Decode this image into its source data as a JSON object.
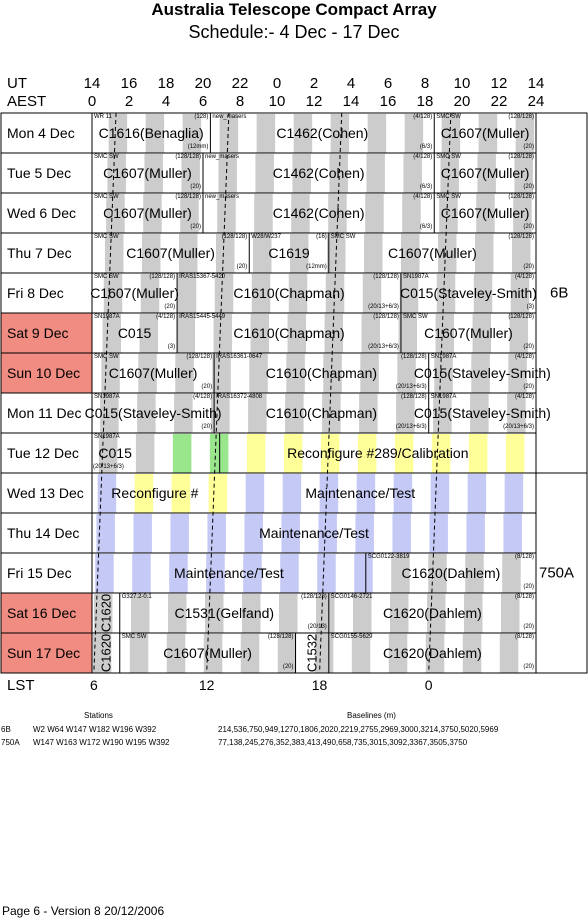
{
  "title": "Australia Telescope Compact Array",
  "subtitle": "Schedule:- 4  Dec - 17 Dec",
  "axis": {
    "ut_label": "UT",
    "aest_label": "AEST",
    "lst_label": "LST",
    "ut_ticks": [
      "14",
      "16",
      "18",
      "20",
      "22",
      "0",
      "2",
      "4",
      "6",
      "8",
      "10",
      "12",
      "14"
    ],
    "aest_ticks": [
      "0",
      "2",
      "4",
      "6",
      "8",
      "10",
      "12",
      "14",
      "16",
      "18",
      "20",
      "22",
      "24"
    ],
    "lst_ticks": [
      {
        "label": "6",
        "hour": 0.1
      },
      {
        "label": "12",
        "hour": 6.2
      },
      {
        "label": "18",
        "hour": 12.3
      },
      {
        "label": "0",
        "hour": 18.2
      }
    ]
  },
  "days": [
    {
      "label": "Mon   4  Dec",
      "weekend": false,
      "blocks": [
        {
          "start": 0,
          "end": 6.4,
          "name": "C1616(Benaglia)",
          "tl": "WR 11",
          "tr": "(128)",
          "br": "(12mm)"
        },
        {
          "start": 6.4,
          "end": 18.5,
          "name": "C1462(Cohen)",
          "tl": "new_masers",
          "tr": "(4/128)",
          "br": "(6/3)"
        },
        {
          "start": 18.5,
          "end": 24,
          "name": "C1607(Muller)",
          "tl": "SMC SW",
          "tr": "(128/128)",
          "br": "(20)"
        }
      ]
    },
    {
      "label": "Tue   5  Dec",
      "weekend": false,
      "blocks": [
        {
          "start": 0,
          "end": 6,
          "name": "C1607(Muller)",
          "tl": "SMC SW",
          "tr": "(128/128)",
          "br": "(20)"
        },
        {
          "start": 6,
          "end": 18.5,
          "name": "C1462(Cohen)",
          "tl": "new_masers",
          "tr": "(4/128)",
          "br": "(6/3)"
        },
        {
          "start": 18.5,
          "end": 24,
          "name": "C1607(Muller)",
          "tl": "SMC SW",
          "tr": "(128/128)",
          "br": "(20)"
        }
      ]
    },
    {
      "label": "Wed   6  Dec",
      "weekend": false,
      "blocks": [
        {
          "start": 0,
          "end": 6,
          "name": "C1607(Muller)",
          "tl": "SMC SW",
          "tr": "(128/128)",
          "br": "(20)"
        },
        {
          "start": 6,
          "end": 18.5,
          "name": "C1462(Cohen)",
          "tl": "new_masers",
          "tr": "(4/128)",
          "br": "(6/3)"
        },
        {
          "start": 18.5,
          "end": 24,
          "name": "C1607(Muller)",
          "tl": "SMC SW",
          "tr": "(128/128)",
          "br": "(20)"
        }
      ]
    },
    {
      "label": "Thu   7  Dec",
      "weekend": false,
      "blocks": [
        {
          "start": 0,
          "end": 8.5,
          "name": "C1607(Muller)",
          "tl": "SMC SW",
          "tr": "(128/128)",
          "br": "(20)"
        },
        {
          "start": 8.5,
          "end": 12.8,
          "name": "C1619",
          "tl": "W28/W237",
          "tr": "(16)",
          "br": "(12mm)"
        },
        {
          "start": 12.8,
          "end": 24,
          "name": "C1607(Muller)",
          "tl": "SMC SW",
          "tr": "(128/128)",
          "br": "(20)"
        }
      ]
    },
    {
      "label": "Fri    8  Dec",
      "weekend": false,
      "blocks": [
        {
          "start": 0,
          "end": 4.6,
          "name": "C1607(Muller)",
          "tl": "SMC SW",
          "tr": "(128/128)",
          "br": "(20)"
        },
        {
          "start": 4.6,
          "end": 16.7,
          "name": "C1610(Chapman)",
          "tl": "IRAS15367-5420",
          "tr": "(128/128)",
          "br": "(20/13+6/3)"
        },
        {
          "start": 16.7,
          "end": 24,
          "name": "C015(Staveley-Smith)",
          "tl": "SN1987A",
          "tr": "(4/128)",
          "br": "(3)"
        }
      ]
    },
    {
      "label": "Sat   9  Dec",
      "weekend": true,
      "blocks": [
        {
          "start": 0,
          "end": 4.6,
          "name": "C015",
          "tl": "SN1987A",
          "tr": "(4/128)",
          "br": "(3)"
        },
        {
          "start": 4.6,
          "end": 16.7,
          "name": "C1610(Chapman)",
          "tl": "IRAS15445-5449",
          "tr": "(128/128)",
          "br": "(20/13+6/3)"
        },
        {
          "start": 16.7,
          "end": 24,
          "name": "C1607(Muller)",
          "tl": "SMC SW",
          "tr": "(128/128)",
          "br": "(20)"
        }
      ]
    },
    {
      "label": "Sun  10 Dec",
      "weekend": true,
      "blocks": [
        {
          "start": 0,
          "end": 6.6,
          "name": "C1607(Muller)",
          "tl": "SMC SW",
          "tr": "(128/128)",
          "br": "(20)"
        },
        {
          "start": 6.6,
          "end": 18.2,
          "name": "C1610(Chapman)",
          "tl": "IRAS16361-0647",
          "tr": "(128/128)",
          "br": "(20/13+6/3)"
        },
        {
          "start": 18.2,
          "end": 24,
          "name": "C015(Staveley-Smith)",
          "tl": "SN1987A",
          "tr": "(4/128)",
          "br": "(20)"
        }
      ]
    },
    {
      "label": "Mon  11 Dec",
      "weekend": false,
      "blocks": [
        {
          "start": 0,
          "end": 6.6,
          "name": "C015(Staveley-Smith)",
          "tl": "SN1987A",
          "tr": "(4/128)",
          "br": "(20)"
        },
        {
          "start": 6.6,
          "end": 18.2,
          "name": "C1610(Chapman)",
          "tl": "IRAS16372-4808",
          "tr": "(128/128)",
          "br": "(20/13+6/3)"
        },
        {
          "start": 18.2,
          "end": 24,
          "name": "C015(Staveley-Smith)",
          "tl": "SN1987A",
          "tr": "(4/128)",
          "br": "(20/13+6/3)"
        }
      ]
    },
    {
      "label": "Tue   12 Dec",
      "weekend": false,
      "blocks": [
        {
          "start": 0,
          "end": 2.5,
          "name": "C015",
          "tl": "SN1987A",
          "tr": "",
          "br": "",
          "bl": "(20/13+6/3)"
        },
        {
          "start": 6.9,
          "end": 24,
          "name": "Reconfigure #289/Calibration",
          "tl": "",
          "tr": "",
          "br": ""
        }
      ]
    },
    {
      "label": "Wed  13 Dec",
      "weekend": false,
      "blocks": [
        {
          "start": 0,
          "end": 24,
          "name": "Reconfigure #",
          "name2": "Maintenance/Test",
          "tl": "",
          "tr": "",
          "br": ""
        }
      ]
    },
    {
      "label": "Thu   14 Dec",
      "weekend": false,
      "blocks": [
        {
          "start": 0,
          "end": 24,
          "name": "Maintenance/Test",
          "tl": "",
          "tr": "",
          "br": ""
        }
      ]
    },
    {
      "label": "Fri    15 Dec",
      "weekend": false,
      "blocks": [
        {
          "start": 0,
          "end": 14.8,
          "name": "Maintenance/Test",
          "tl": "",
          "tr": "",
          "br": ""
        },
        {
          "start": 14.8,
          "end": 24,
          "name": "C1620(Dahlem)",
          "tl": "SCG0122-3819",
          "tr": "(8/128)",
          "br": "(20)"
        }
      ]
    },
    {
      "label": "Sat   16 Dec",
      "weekend": true,
      "blocks": [
        {
          "start": 0,
          "end": 1.5,
          "name": "C1620",
          "vertical": true,
          "tl": "",
          "tr": "",
          "br": ""
        },
        {
          "start": 1.5,
          "end": 12.8,
          "name": "C1531(Gelfand)",
          "tl": "G327.2-0.1",
          "tr": "(128/128)",
          "br": "(20/13)"
        },
        {
          "start": 12.8,
          "end": 24,
          "name": "C1620(Dahlem)",
          "tl": "SCG0146-2721",
          "tr": "(8/128)",
          "br": "(20)"
        }
      ]
    },
    {
      "label": "Sun  17 Dec",
      "weekend": true,
      "blocks": [
        {
          "start": 0,
          "end": 1.5,
          "name": "C1620",
          "vertical": true,
          "tl": "",
          "tr": "",
          "br": ""
        },
        {
          "start": 1.5,
          "end": 11,
          "name": "C1607(Muller)",
          "tl": "SMC SW",
          "tr": "(128/128)",
          "br": "(20)"
        },
        {
          "start": 11,
          "end": 12.8,
          "name": "C1532",
          "vertical": true,
          "tl": "",
          "tr": "",
          "br": ""
        },
        {
          "start": 12.8,
          "end": 24,
          "name": "C1620(Dahlem)",
          "tl": "SCG0155-5629",
          "tr": "(8/128)",
          "br": "(20)"
        }
      ]
    }
  ],
  "configs": [
    {
      "label": "6B",
      "from_day": 0,
      "to_day": 8
    },
    {
      "label": "750A",
      "from_day": 9,
      "to_day": 13
    }
  ],
  "stations": {
    "heading": "Stations",
    "baselines_heading": "Baselines (m)",
    "rows": [
      {
        "config": "6B",
        "stations": "W2 W64 W147 W182 W196 W392",
        "baselines": "214,536,750,949,1270,1806,2020,2219,2755,2969,3000,3214,3750,5020,5969"
      },
      {
        "config": "750A",
        "stations": "W147 W163 W172 W190 W195 W392",
        "baselines": "77,138,245,276,352,383,413,490,658,735,3015,3092,3367,3505,3750"
      }
    ]
  },
  "footer": "Page 6 - Version 8  20/12/2006",
  "colors": {
    "weekend": "#f08c82",
    "lst_band": "#cccccc",
    "reconfig": "#ffff99",
    "green": "#99e68c",
    "maint": "#c5c9f5"
  }
}
